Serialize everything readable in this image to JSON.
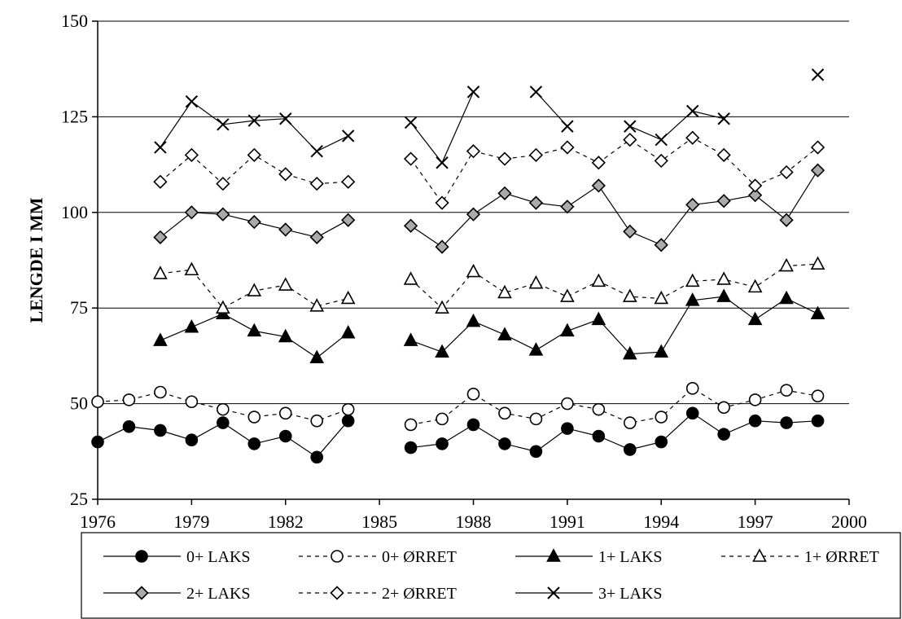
{
  "chart_data": {
    "type": "line",
    "title": "",
    "xlabel": "",
    "ylabel": "LENGDE I MM",
    "xlim": [
      1976,
      2000
    ],
    "ylim": [
      25,
      150
    ],
    "xticks": [
      "1976",
      "1979",
      "1982",
      "1985",
      "1988",
      "1991",
      "1994",
      "1997",
      "2000"
    ],
    "yticks": [
      "25",
      "50",
      "75",
      "100",
      "125",
      "150"
    ],
    "grid": "horizontal",
    "legend_position": "bottom",
    "series": [
      {
        "name": "0+ LAKS",
        "line": "solid",
        "marker": "circle",
        "fill": "#000000",
        "points": [
          [
            1976,
            40
          ],
          [
            1977,
            44
          ],
          [
            1978,
            43
          ],
          [
            1979,
            40.5
          ],
          [
            1980,
            45
          ],
          [
            1981,
            39.5
          ],
          [
            1982,
            41.5
          ],
          [
            1983,
            36
          ],
          [
            1984,
            45.5
          ],
          [
            1986,
            38.5
          ],
          [
            1987,
            39.5
          ],
          [
            1988,
            44.5
          ],
          [
            1989,
            39.5
          ],
          [
            1990,
            37.5
          ],
          [
            1991,
            43.5
          ],
          [
            1992,
            41.5
          ],
          [
            1993,
            38
          ],
          [
            1994,
            40
          ],
          [
            1995,
            47.5
          ],
          [
            1996,
            42
          ],
          [
            1997,
            45.5
          ],
          [
            1998,
            45
          ],
          [
            1999,
            45.5
          ]
        ]
      },
      {
        "name": "0+ ØRRET",
        "line": "dashed",
        "marker": "circle",
        "fill": "#ffffff",
        "points": [
          [
            1976,
            50.5
          ],
          [
            1977,
            51
          ],
          [
            1978,
            53
          ],
          [
            1979,
            50.5
          ],
          [
            1980,
            48.5
          ],
          [
            1981,
            46.5
          ],
          [
            1982,
            47.5
          ],
          [
            1983,
            45.5
          ],
          [
            1984,
            48.5
          ],
          [
            1986,
            44.5
          ],
          [
            1987,
            46
          ],
          [
            1988,
            52.5
          ],
          [
            1989,
            47.5
          ],
          [
            1990,
            46
          ],
          [
            1991,
            50
          ],
          [
            1992,
            48.5
          ],
          [
            1993,
            45
          ],
          [
            1994,
            46.5
          ],
          [
            1995,
            54
          ],
          [
            1996,
            49
          ],
          [
            1997,
            51
          ],
          [
            1998,
            53.5
          ],
          [
            1999,
            52
          ]
        ]
      },
      {
        "name": "1+ LAKS",
        "line": "solid",
        "marker": "triangle",
        "fill": "#000000",
        "points": [
          [
            1978,
            66.5
          ],
          [
            1979,
            70
          ],
          [
            1980,
            73.5
          ],
          [
            1981,
            69
          ],
          [
            1982,
            67.5
          ],
          [
            1983,
            62
          ],
          [
            1984,
            68.5
          ],
          [
            1986,
            66.5
          ],
          [
            1987,
            63.5
          ],
          [
            1988,
            71.5
          ],
          [
            1989,
            68
          ],
          [
            1990,
            64
          ],
          [
            1991,
            69
          ],
          [
            1992,
            72
          ],
          [
            1993,
            63
          ],
          [
            1994,
            63.5
          ],
          [
            1995,
            77
          ],
          [
            1996,
            78
          ],
          [
            1997,
            72
          ],
          [
            1998,
            77.5
          ],
          [
            1999,
            73.5
          ]
        ]
      },
      {
        "name": "1+ ØRRET",
        "line": "dashed",
        "marker": "triangle",
        "fill": "#ffffff",
        "points": [
          [
            1978,
            84
          ],
          [
            1979,
            85
          ],
          [
            1980,
            75
          ],
          [
            1981,
            79.5
          ],
          [
            1982,
            81
          ],
          [
            1983,
            75.5
          ],
          [
            1984,
            77.5
          ],
          [
            1986,
            82.5
          ],
          [
            1987,
            75
          ],
          [
            1988,
            84.5
          ],
          [
            1989,
            79
          ],
          [
            1990,
            81.5
          ],
          [
            1991,
            78
          ],
          [
            1992,
            82
          ],
          [
            1993,
            78
          ],
          [
            1994,
            77.5
          ],
          [
            1995,
            82
          ],
          [
            1996,
            82.5
          ],
          [
            1997,
            80.5
          ],
          [
            1998,
            86
          ],
          [
            1999,
            86.5
          ]
        ]
      },
      {
        "name": "2+ LAKS",
        "line": "solid",
        "marker": "diamond",
        "fill": "#aaaaaa",
        "points": [
          [
            1978,
            93.5
          ],
          [
            1979,
            100
          ],
          [
            1980,
            99.5
          ],
          [
            1981,
            97.5
          ],
          [
            1982,
            95.5
          ],
          [
            1983,
            93.5
          ],
          [
            1984,
            98
          ],
          [
            1986,
            96.5
          ],
          [
            1987,
            91
          ],
          [
            1988,
            99.5
          ],
          [
            1989,
            105
          ],
          [
            1990,
            102.5
          ],
          [
            1991,
            101.5
          ],
          [
            1992,
            107
          ],
          [
            1993,
            95
          ],
          [
            1994,
            91.5
          ],
          [
            1995,
            102
          ],
          [
            1996,
            103
          ],
          [
            1997,
            104.5
          ],
          [
            1998,
            98
          ],
          [
            1999,
            111
          ]
        ]
      },
      {
        "name": "2+ ØRRET",
        "line": "dashed",
        "marker": "diamond",
        "fill": "#ffffff",
        "points": [
          [
            1978,
            108
          ],
          [
            1979,
            115
          ],
          [
            1980,
            107.5
          ],
          [
            1981,
            115
          ],
          [
            1982,
            110
          ],
          [
            1983,
            107.5
          ],
          [
            1984,
            108
          ],
          [
            1986,
            114
          ],
          [
            1987,
            102.5
          ],
          [
            1988,
            116
          ],
          [
            1989,
            114
          ],
          [
            1990,
            115
          ],
          [
            1991,
            117
          ],
          [
            1992,
            113
          ],
          [
            1993,
            119
          ],
          [
            1994,
            113.5
          ],
          [
            1995,
            119.5
          ],
          [
            1996,
            115
          ],
          [
            1997,
            107
          ],
          [
            1998,
            110.5
          ],
          [
            1999,
            117
          ]
        ]
      },
      {
        "name": "3+ LAKS",
        "line": "solid",
        "marker": "x",
        "fill": "#000000",
        "points": [
          [
            1978,
            117
          ],
          [
            1979,
            129
          ],
          [
            1980,
            123
          ],
          [
            1981,
            124
          ],
          [
            1982,
            124.5
          ],
          [
            1983,
            116
          ],
          [
            1984,
            120
          ],
          [
            1986,
            123.5
          ],
          [
            1987,
            113
          ],
          [
            1988,
            131.5
          ],
          [
            1990,
            131.5
          ],
          [
            1991,
            122.5
          ],
          [
            1993,
            122.5
          ],
          [
            1994,
            119
          ],
          [
            1995,
            126.5
          ],
          [
            1996,
            124.5
          ],
          [
            1999,
            136
          ]
        ]
      }
    ]
  }
}
